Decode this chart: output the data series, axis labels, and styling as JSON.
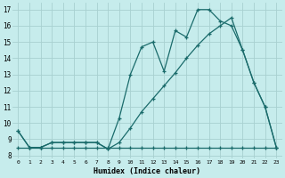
{
  "xlabel": "Humidex (Indice chaleur)",
  "bg_color": "#c6ecec",
  "grid_color": "#a8d0d0",
  "line_color": "#1a6b6b",
  "xlim": [
    -0.5,
    23.5
  ],
  "ylim": [
    7.8,
    17.4
  ],
  "yticks": [
    8,
    9,
    10,
    11,
    12,
    13,
    14,
    15,
    16,
    17
  ],
  "xticks": [
    0,
    1,
    2,
    3,
    4,
    5,
    6,
    7,
    8,
    9,
    10,
    11,
    12,
    13,
    14,
    15,
    16,
    17,
    18,
    19,
    20,
    21,
    22,
    23
  ],
  "line1_x": [
    0,
    1,
    2,
    3,
    4,
    5,
    6,
    7,
    8,
    9,
    10,
    11,
    12,
    13,
    14,
    15,
    16,
    17,
    18,
    19,
    20,
    21,
    22,
    23
  ],
  "line1_y": [
    9.5,
    8.5,
    8.5,
    8.8,
    8.8,
    8.8,
    8.8,
    8.8,
    8.4,
    10.3,
    13.0,
    14.7,
    15.0,
    13.2,
    15.7,
    15.3,
    17.0,
    17.0,
    16.3,
    16.0,
    14.5,
    12.5,
    11.0,
    8.5
  ],
  "line2_x": [
    0,
    1,
    2,
    3,
    4,
    5,
    6,
    7,
    8,
    9,
    10,
    11,
    12,
    13,
    14,
    15,
    16,
    17,
    18,
    19,
    20,
    21,
    22,
    23
  ],
  "line2_y": [
    9.5,
    8.5,
    8.5,
    8.8,
    8.8,
    8.8,
    8.8,
    8.8,
    8.4,
    8.8,
    9.7,
    10.7,
    11.5,
    12.3,
    13.1,
    14.0,
    14.8,
    15.5,
    16.0,
    16.5,
    14.5,
    12.5,
    11.0,
    8.5
  ],
  "line3_x": [
    0,
    1,
    2,
    3,
    4,
    5,
    6,
    7,
    8,
    9,
    10,
    11,
    12,
    13,
    14,
    15,
    16,
    17,
    18,
    19,
    20,
    21,
    22,
    23
  ],
  "line3_y": [
    8.5,
    8.5,
    8.5,
    8.5,
    8.5,
    8.5,
    8.5,
    8.5,
    8.5,
    8.5,
    8.5,
    8.5,
    8.5,
    8.5,
    8.5,
    8.5,
    8.5,
    8.5,
    8.5,
    8.5,
    8.5,
    8.5,
    8.5,
    8.5
  ]
}
